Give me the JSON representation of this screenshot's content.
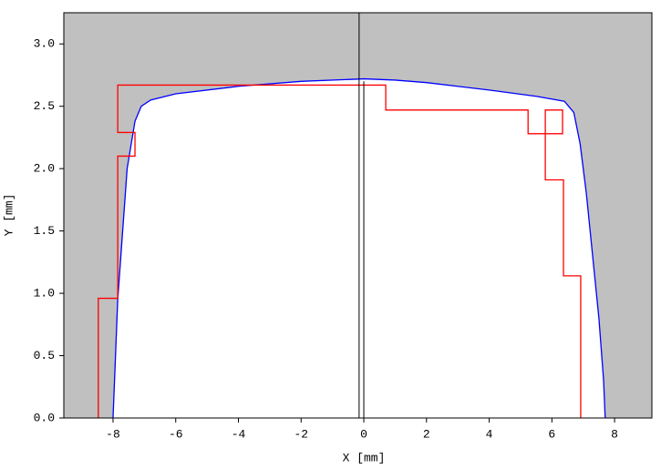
{
  "chart_data": {
    "type": "line",
    "xlabel": "X [mm]",
    "ylabel": "Y [mm]",
    "xlim": [
      -9.57,
      9.19
    ],
    "ylim": [
      0,
      3.25
    ],
    "xticks": [
      -8,
      -6,
      -4,
      -2,
      0,
      2,
      4,
      6,
      8
    ],
    "yticks": [
      {
        "value": 0,
        "label": "0.0"
      },
      {
        "value": 0.5,
        "label": "0.5"
      },
      {
        "value": 1,
        "label": "1.0"
      },
      {
        "value": 1.5,
        "label": "1.5"
      },
      {
        "value": 2,
        "label": "2.0"
      },
      {
        "value": 2.5,
        "label": "2.5"
      },
      {
        "value": 3,
        "label": "3.0"
      }
    ],
    "background": "#c0c0c0",
    "series": [
      {
        "color": "#0000ff",
        "fill_below": "#ffffff",
        "x": [
          -8.0,
          -7.85,
          -7.55,
          -7.3,
          -7.1,
          -6.8,
          -6.0,
          -4.0,
          -2.0,
          0.0,
          1.0,
          2.0,
          4.0,
          5.5,
          6.4,
          6.7,
          6.9,
          7.1,
          7.3,
          7.5,
          7.65,
          7.7
        ],
        "values": [
          0,
          0.95,
          2.0,
          2.38,
          2.5,
          2.55,
          2.6,
          2.66,
          2.7,
          2.72,
          2.71,
          2.69,
          2.63,
          2.58,
          2.54,
          2.45,
          2.2,
          1.8,
          1.3,
          0.8,
          0.3,
          0
        ]
      },
      {
        "color": "#ff0000",
        "x": [
          -8.47,
          -8.47,
          -7.85,
          -7.85,
          -7.3,
          -7.3,
          -7.85,
          -7.85,
          0.7,
          0.7,
          5.24,
          5.24,
          6.34,
          6.34,
          5.79,
          5.79,
          6.37,
          6.37,
          6.92,
          6.92
        ],
        "values": [
          0,
          0.96,
          0.96,
          2.1,
          2.1,
          2.29,
          2.29,
          2.67,
          2.67,
          2.47,
          2.47,
          2.28,
          2.28,
          2.47,
          2.47,
          1.91,
          1.91,
          1.14,
          1.14,
          0
        ]
      }
    ],
    "vlines": [
      {
        "x": -0.15,
        "color": "#000000"
      },
      {
        "x": 0.0,
        "ytop": 2.7,
        "color": "#000000"
      }
    ]
  }
}
